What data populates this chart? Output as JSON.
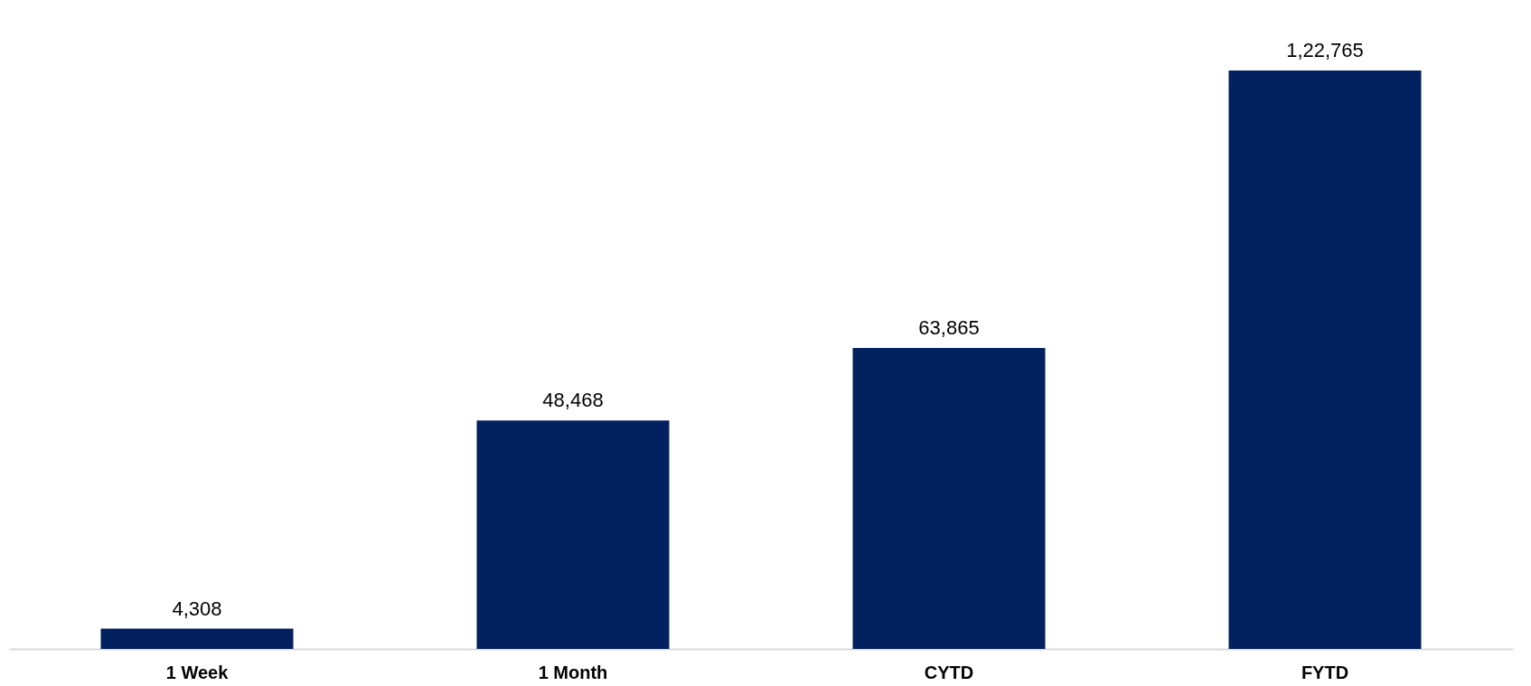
{
  "chart_data": {
    "type": "bar",
    "categories": [
      "1 Week",
      "1 Month",
      "CYTD",
      "FYTD"
    ],
    "values": [
      4308,
      48468,
      63865,
      122765
    ],
    "color": "#03215e",
    "value_labels": [
      "4,308",
      "48,468",
      "63,865",
      "1,22,765"
    ]
  }
}
